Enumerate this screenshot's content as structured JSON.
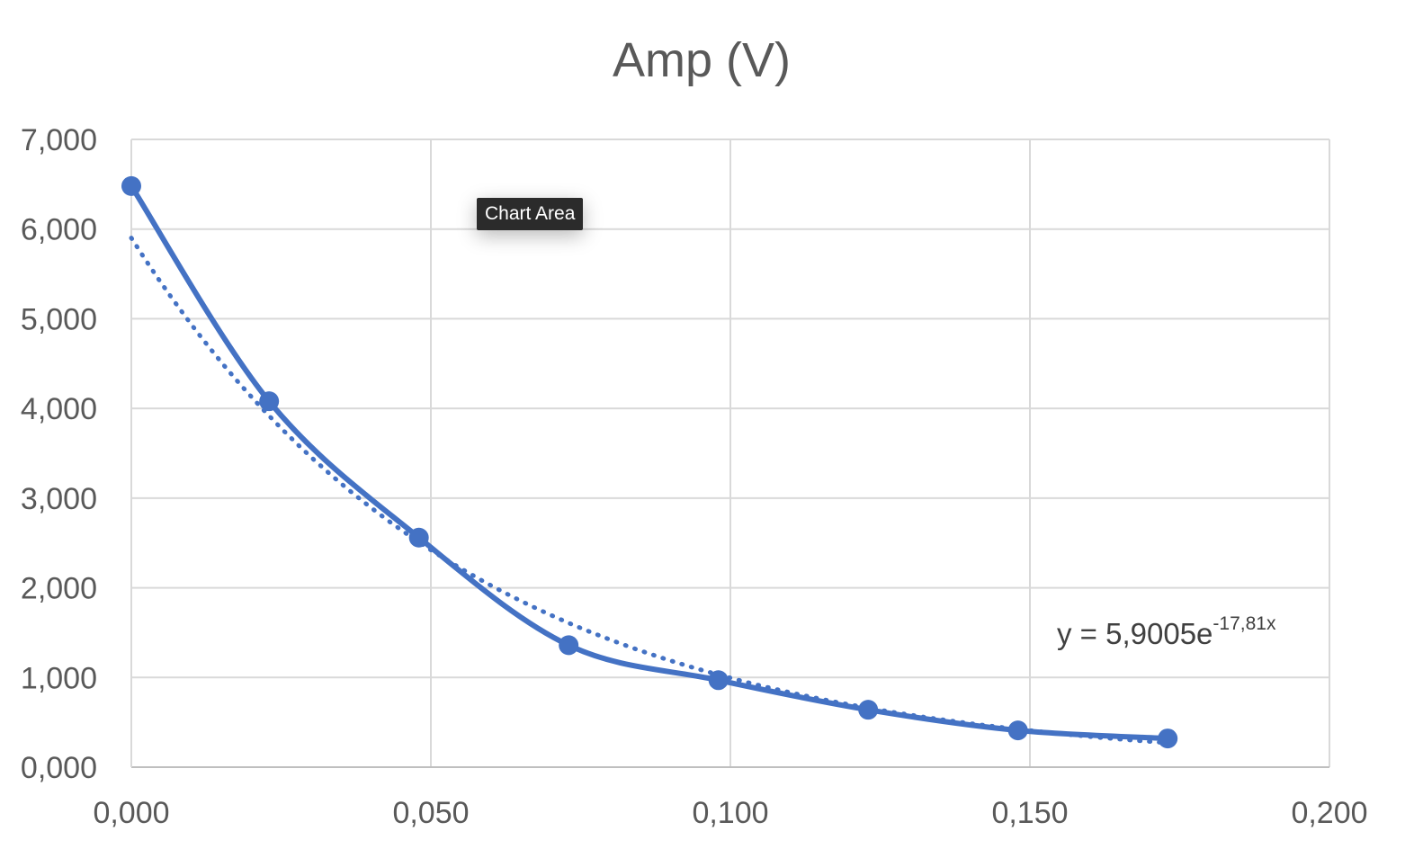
{
  "chart_data": {
    "type": "scatter",
    "title": "Amp (V)",
    "xlabel": "",
    "ylabel": "",
    "xlim": [
      0,
      0.2
    ],
    "ylim": [
      0,
      7
    ],
    "x_ticks": [
      "0,000",
      "0,050",
      "0,100",
      "0,150",
      "0,200"
    ],
    "y_ticks": [
      "0,000",
      "1,000",
      "2,000",
      "3,000",
      "4,000",
      "5,000",
      "6,000",
      "7,000"
    ],
    "grid": true,
    "legend": "none",
    "series": [
      {
        "x": [
          0.0,
          0.023,
          0.048,
          0.073,
          0.098,
          0.123,
          0.148,
          0.173
        ],
        "y": [
          6.48,
          4.08,
          2.56,
          1.36,
          0.97,
          0.64,
          0.41,
          0.32
        ],
        "color": "#4472C4",
        "line": "smooth",
        "markers": true
      }
    ],
    "trendline": {
      "type": "exponential",
      "style": "dotted",
      "color": "#4472C4",
      "a": 5.9005,
      "b": -17.81,
      "x_range": [
        0.0,
        0.173
      ],
      "equation_main": "y = 5,9005e",
      "equation_exponent": "-17,81x"
    }
  },
  "tooltip": {
    "label": "Chart Area"
  },
  "colors": {
    "series": "#4472C4",
    "grid": "#d9d9d9",
    "text": "#595959",
    "tooltip_bg": "#2b2b2b"
  }
}
